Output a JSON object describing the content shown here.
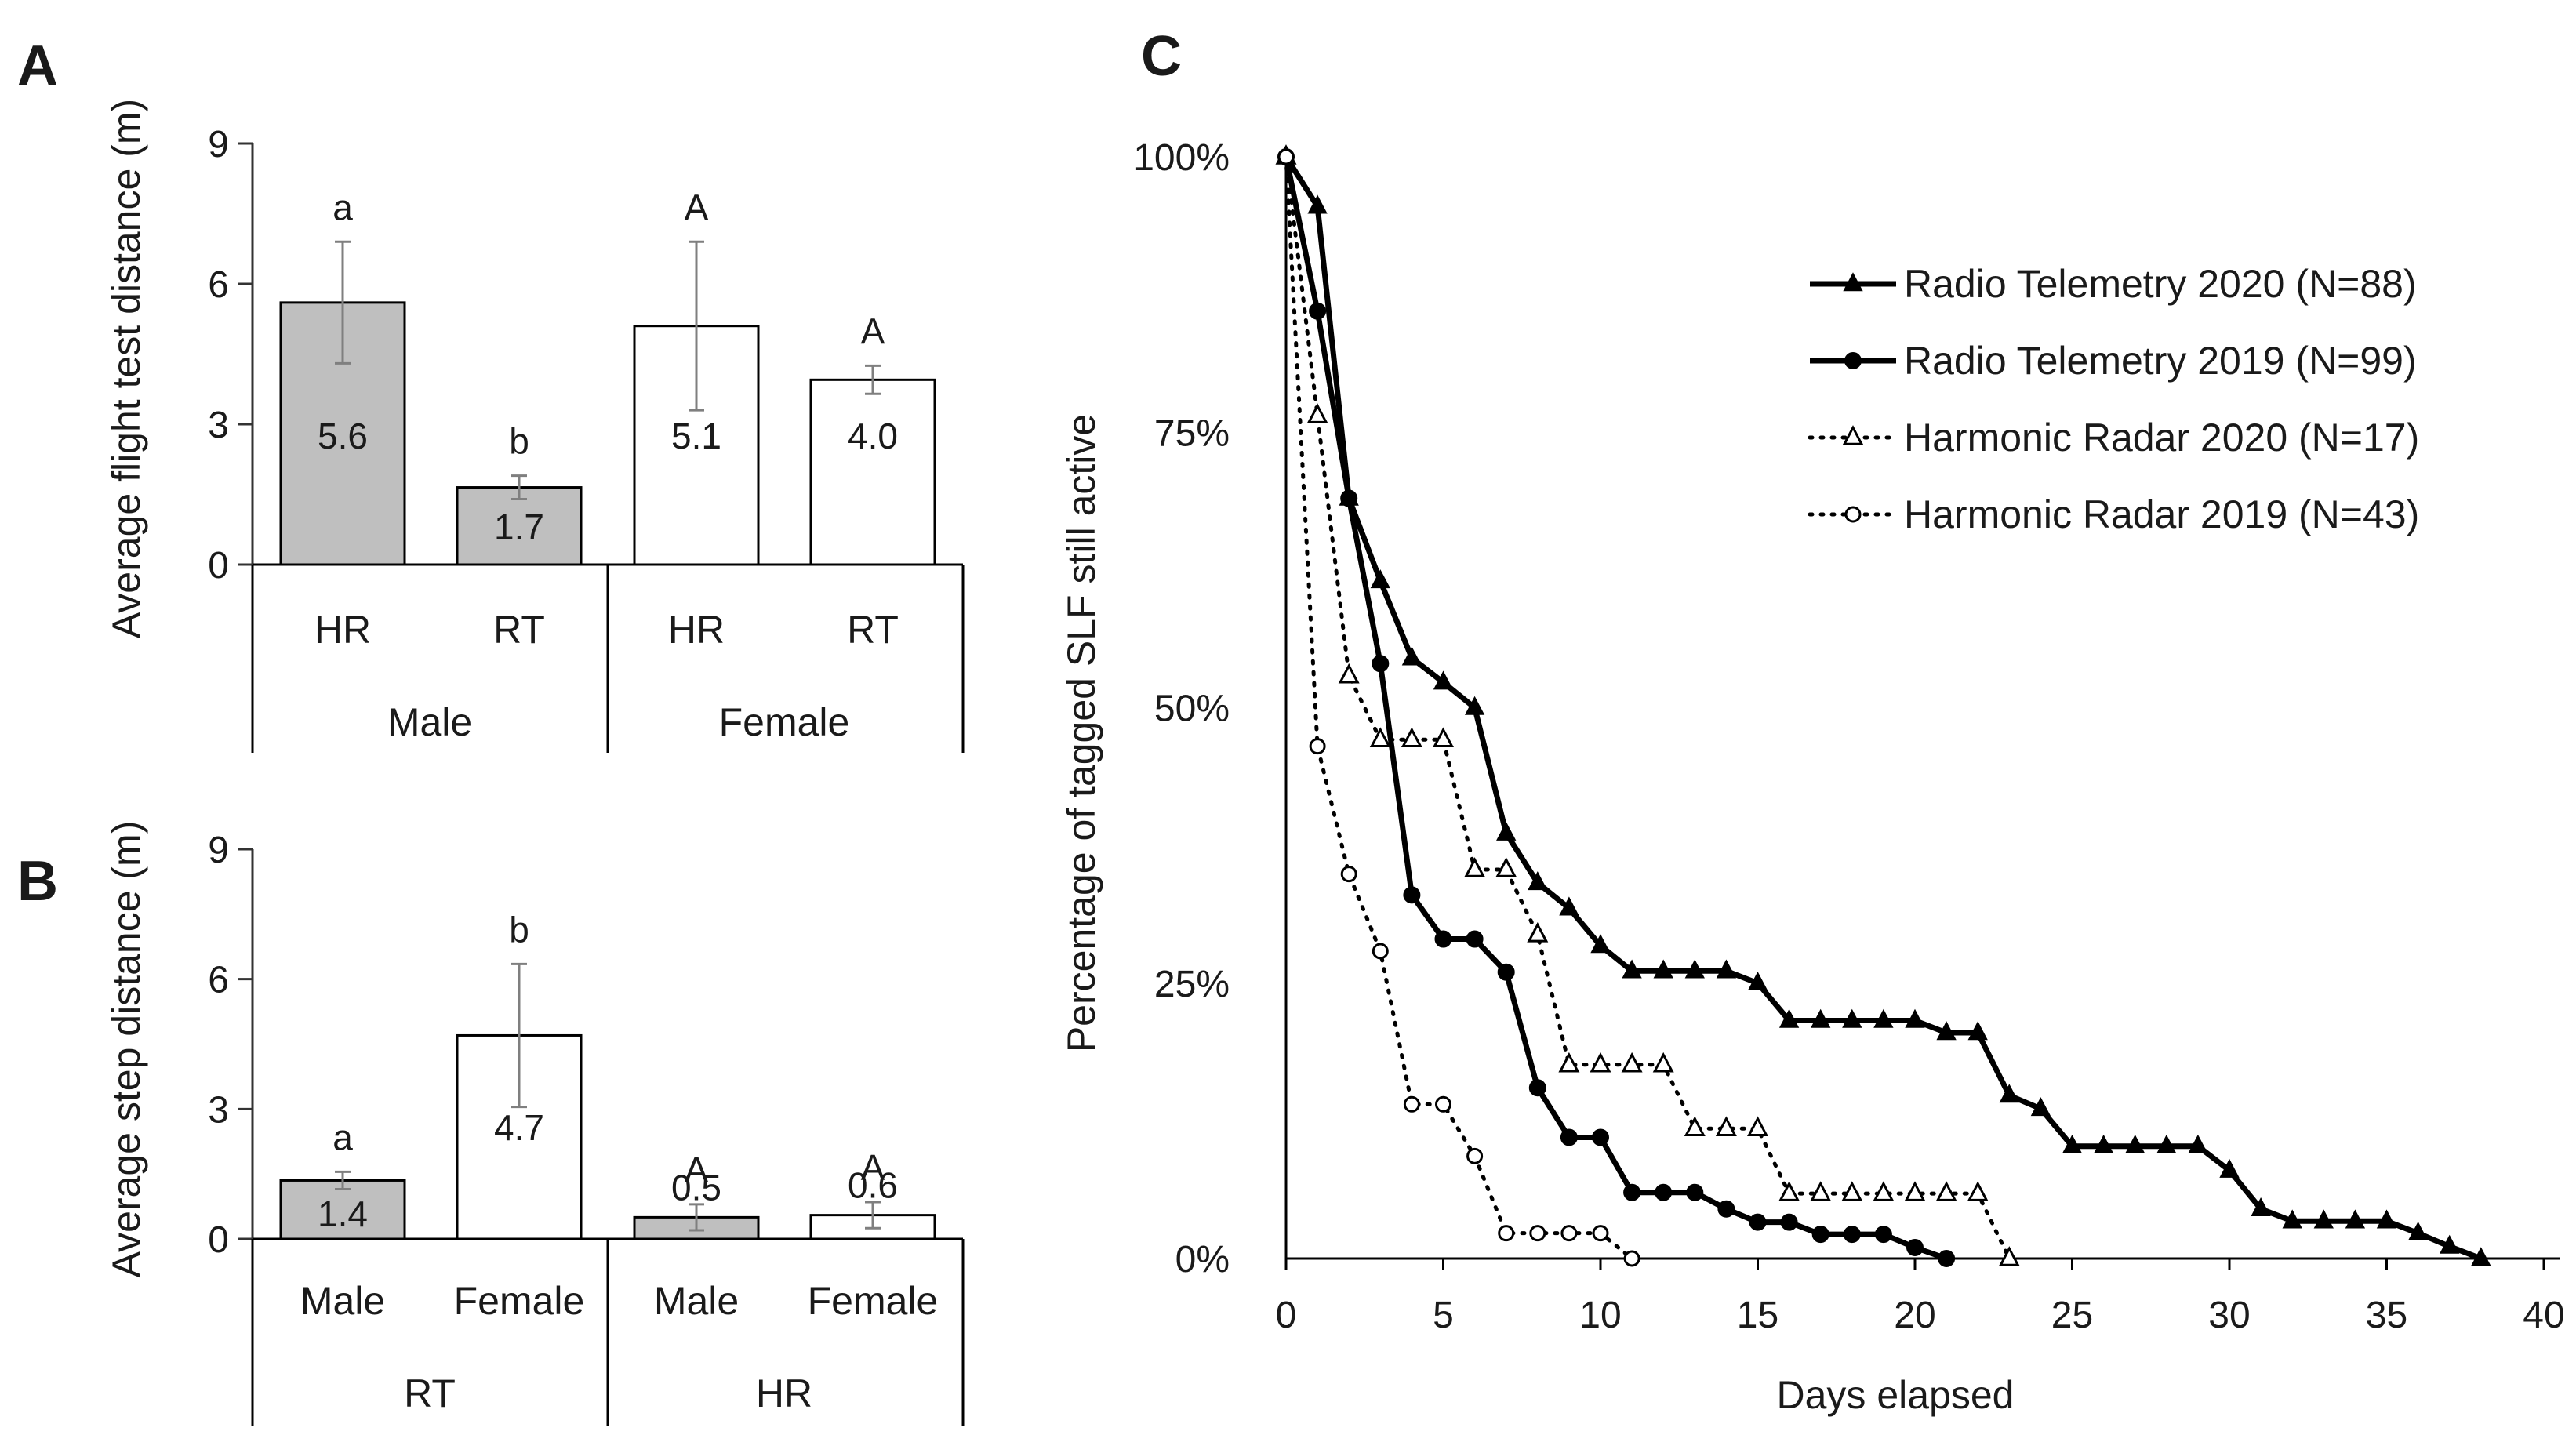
{
  "chart_data": [
    {
      "id": "A",
      "type": "bar",
      "panel_label": "A",
      "ylabel": "Average flight test distance (m)",
      "ylim": [
        0,
        9
      ],
      "yticks": [
        "0",
        "3",
        "6",
        "9"
      ],
      "groups": [
        "Male",
        "Female"
      ],
      "bars": [
        {
          "category": "HR",
          "group": "Male",
          "value": 5.6,
          "label": "5.6",
          "err": 1.3,
          "sig": "a",
          "fill": "#bfbfbf"
        },
        {
          "category": "RT",
          "group": "Male",
          "value": 1.65,
          "label": "1.7",
          "err": 0.25,
          "sig": "b",
          "fill": "#bfbfbf"
        },
        {
          "category": "HR",
          "group": "Female",
          "value": 5.1,
          "label": "5.1",
          "err": 1.8,
          "sig": "A",
          "fill": "#ffffff"
        },
        {
          "category": "RT",
          "group": "Female",
          "value": 3.95,
          "label": "4.0",
          "err": 0.3,
          "sig": "A",
          "fill": "#ffffff"
        }
      ]
    },
    {
      "id": "B",
      "type": "bar",
      "panel_label": "B",
      "ylabel": "Average step distance (m)",
      "ylim": [
        0,
        9
      ],
      "yticks": [
        "0",
        "3",
        "6",
        "9"
      ],
      "groups": [
        "RT",
        "HR"
      ],
      "bars": [
        {
          "category": "Male",
          "group": "RT",
          "value": 1.35,
          "label": "1.4",
          "err": 0.2,
          "sig": "a",
          "fill": "#bfbfbf"
        },
        {
          "category": "Female",
          "group": "RT",
          "value": 4.7,
          "label": "4.7",
          "err": 1.65,
          "sig": "b",
          "fill": "#ffffff"
        },
        {
          "category": "Male",
          "group": "HR",
          "value": 0.5,
          "label": "0.5",
          "err": 0.3,
          "sig": "A",
          "fill": "#bfbfbf"
        },
        {
          "category": "Female",
          "group": "HR",
          "value": 0.55,
          "label": "0.6",
          "err": 0.3,
          "sig": "A",
          "fill": "#ffffff"
        }
      ]
    },
    {
      "id": "C",
      "type": "line",
      "panel_label": "C",
      "xlabel": "Days elapsed",
      "ylabel": "Percentage of tagged SLF still active",
      "xlim": [
        0,
        40
      ],
      "ylim": [
        0,
        100
      ],
      "xticks": [
        "0",
        "5",
        "10",
        "15",
        "20",
        "25",
        "30",
        "35",
        "40"
      ],
      "yticks": [
        "0%",
        "25%",
        "50%",
        "75%",
        "100%"
      ],
      "series": [
        {
          "name": "Radio Telemetry 2020 (N=88)",
          "marker": "triangle-filled",
          "dash": "solid",
          "x": [
            0,
            1,
            2,
            3,
            4,
            5,
            6,
            7,
            8,
            9,
            10,
            11,
            12,
            13,
            14,
            15,
            16,
            17,
            18,
            19,
            20,
            21,
            22,
            23,
            24,
            25,
            26,
            27,
            28,
            29,
            30,
            31,
            32,
            33,
            34,
            35,
            36,
            37,
            38
          ],
          "y": [
            100,
            95.5,
            69,
            61.5,
            54.5,
            52.3,
            50,
            38.6,
            34.1,
            31.8,
            28.4,
            26.1,
            26.1,
            26.1,
            26.1,
            25,
            21.6,
            21.6,
            21.6,
            21.6,
            21.6,
            20.5,
            20.5,
            14.8,
            13.6,
            10.2,
            10.2,
            10.2,
            10.2,
            10.2,
            8,
            4.5,
            3.4,
            3.4,
            3.4,
            3.4,
            2.3,
            1.1,
            0
          ]
        },
        {
          "name": "Radio Telemetry 2019 (N=99)",
          "marker": "circle-filled",
          "dash": "solid",
          "x": [
            0,
            1,
            2,
            3,
            4,
            5,
            6,
            7,
            8,
            9,
            10,
            11,
            12,
            13,
            14,
            15,
            16,
            17,
            18,
            19,
            20,
            21
          ],
          "y": [
            100,
            86,
            69,
            54,
            33,
            29,
            29,
            26,
            15.5,
            11,
            11,
            6,
            6,
            6,
            4.5,
            3.3,
            3.3,
            2.2,
            2.2,
            2.2,
            1,
            0
          ]
        },
        {
          "name": "Harmonic Radar 2020 (N=17)",
          "marker": "triangle-open",
          "dash": "dotted",
          "x": [
            0,
            1,
            2,
            3,
            4,
            5,
            6,
            7,
            8,
            9,
            10,
            11,
            12,
            13,
            14,
            15,
            16,
            17,
            18,
            19,
            20,
            21,
            22,
            23
          ],
          "y": [
            100,
            76.5,
            52.9,
            47.1,
            47.1,
            47.1,
            35.3,
            35.3,
            29.4,
            17.6,
            17.6,
            17.6,
            17.6,
            11.8,
            11.8,
            11.8,
            5.9,
            5.9,
            5.9,
            5.9,
            5.9,
            5.9,
            5.9,
            0
          ]
        },
        {
          "name": "Harmonic Radar 2019 (N=43)",
          "marker": "circle-open",
          "dash": "dotted",
          "x": [
            0,
            1,
            2,
            3,
            4,
            5,
            6,
            7,
            8,
            9,
            10,
            11
          ],
          "y": [
            100,
            46.5,
            34.9,
            27.9,
            14,
            14,
            9.3,
            2.3,
            2.3,
            2.3,
            2.3,
            0
          ]
        }
      ]
    }
  ]
}
